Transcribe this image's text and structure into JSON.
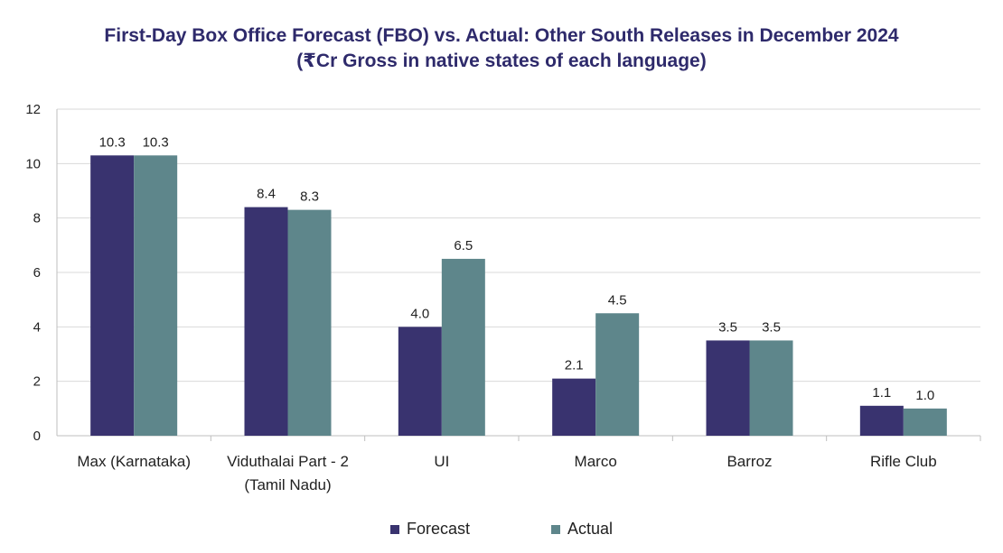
{
  "chart_data": {
    "type": "bar",
    "title": "First-Day Box Office Forecast (FBO) vs. Actual: Other South Releases in December 2024",
    "subtitle": "(₹Cr Gross in native states of each language)",
    "categories": [
      [
        "Max (Karnataka)"
      ],
      [
        "Viduthalai Part - 2",
        "(Tamil Nadu)"
      ],
      [
        "UI"
      ],
      [
        "Marco"
      ],
      [
        "Barroz"
      ],
      [
        "Rifle Club"
      ]
    ],
    "series": [
      {
        "name": "Forecast",
        "values": [
          10.3,
          8.4,
          4.0,
          2.1,
          3.5,
          1.1
        ],
        "labels": [
          "10.3",
          "8.4",
          "4.0",
          "2.1",
          "3.5",
          "1.1"
        ],
        "color": "#39336f"
      },
      {
        "name": "Actual",
        "values": [
          10.3,
          8.3,
          6.5,
          4.5,
          3.5,
          1.0
        ],
        "labels": [
          "10.3",
          "8.3",
          "6.5",
          "4.5",
          "3.5",
          "1.0"
        ],
        "color": "#5e868b"
      }
    ],
    "ylim": [
      0,
      12
    ],
    "yticks": [
      0,
      2,
      4,
      6,
      8,
      10,
      12
    ],
    "grid": true,
    "legend_position": "bottom"
  }
}
